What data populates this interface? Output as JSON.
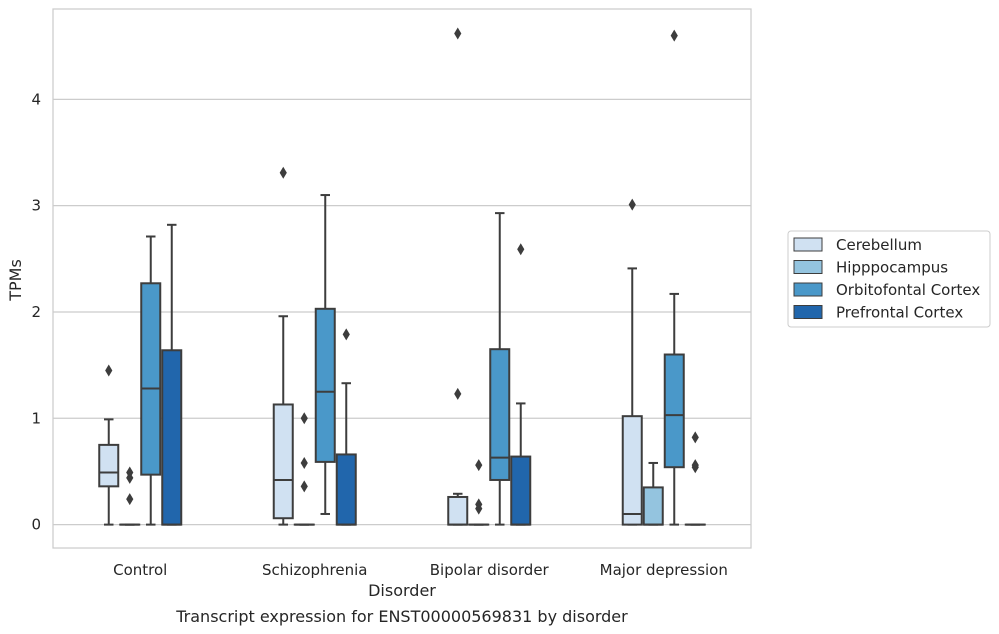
{
  "caption": "Transcript expression for ENST00000569831 by disorder",
  "chart_data": {
    "type": "box",
    "xlabel": "Disorder",
    "ylabel": "TPMs",
    "ylim": [
      -0.22,
      4.85
    ],
    "yticks": [
      0,
      1,
      2,
      3,
      4
    ],
    "grid": "horizontal",
    "legend_position": "right",
    "categories": [
      "Control",
      "Schizophrenia",
      "Bipolar disorder",
      "Major depression"
    ],
    "series": [
      {
        "name": "Cerebellum",
        "color": "#d0e1f2",
        "boxes": [
          {
            "whislo": 0,
            "q1": 0.36,
            "med": 0.49,
            "q3": 0.75,
            "whishi": 0.99,
            "fliers": [
              1.45
            ]
          },
          {
            "whislo": 0,
            "q1": 0.06,
            "med": 0.42,
            "q3": 1.13,
            "whishi": 1.96,
            "fliers": [
              3.31
            ]
          },
          {
            "whislo": 0,
            "q1": 0.0,
            "med": 0.0,
            "q3": 0.26,
            "whishi": 0.29,
            "fliers": [
              1.23,
              4.62
            ]
          },
          {
            "whislo": 0,
            "q1": 0.0,
            "med": 0.1,
            "q3": 1.02,
            "whishi": 2.41,
            "fliers": [
              3.01
            ]
          }
        ]
      },
      {
        "name": "Hipppocampus",
        "color": "#94c4df",
        "boxes": [
          {
            "whislo": 0,
            "q1": 0.0,
            "med": 0.0,
            "q3": 0.0,
            "whishi": 0.0,
            "fliers": [
              0.24,
              0.44,
              0.49
            ]
          },
          {
            "whislo": 0,
            "q1": 0.0,
            "med": 0.0,
            "q3": 0.0,
            "whishi": 0.0,
            "fliers": [
              0.36,
              0.58,
              1.0
            ]
          },
          {
            "whislo": 0,
            "q1": 0.0,
            "med": 0.0,
            "q3": 0.0,
            "whishi": 0.0,
            "fliers": [
              0.15,
              0.19,
              0.56
            ]
          },
          {
            "whislo": 0,
            "q1": 0.0,
            "med": 0.0,
            "q3": 0.35,
            "whishi": 0.58,
            "fliers": []
          }
        ]
      },
      {
        "name": "Orbitofontal Cortex",
        "color": "#4a98c9",
        "boxes": [
          {
            "whislo": 0,
            "q1": 0.47,
            "med": 1.28,
            "q3": 2.27,
            "whishi": 2.71,
            "fliers": []
          },
          {
            "whislo": 0.1,
            "q1": 0.59,
            "med": 1.25,
            "q3": 2.03,
            "whishi": 3.1,
            "fliers": []
          },
          {
            "whislo": 0,
            "q1": 0.42,
            "med": 0.63,
            "q3": 1.65,
            "whishi": 2.93,
            "fliers": []
          },
          {
            "whislo": 0,
            "q1": 0.54,
            "med": 1.03,
            "q3": 1.6,
            "whishi": 2.17,
            "fliers": [
              4.6
            ]
          }
        ]
      },
      {
        "name": "Prefrontal Cortex",
        "color": "#2166ac",
        "boxes": [
          {
            "whislo": 0,
            "q1": 0.0,
            "med": 0.0,
            "q3": 1.64,
            "whishi": 2.82,
            "fliers": []
          },
          {
            "whislo": 0,
            "q1": 0.0,
            "med": 0.0,
            "q3": 0.66,
            "whishi": 1.33,
            "fliers": [
              1.79
            ]
          },
          {
            "whislo": 0,
            "q1": 0.0,
            "med": 0.0,
            "q3": 0.64,
            "whishi": 1.14,
            "fliers": [
              2.59
            ]
          },
          {
            "whislo": 0,
            "q1": 0.0,
            "med": 0.0,
            "q3": 0.0,
            "whishi": 0.0,
            "fliers": [
              0.54,
              0.56,
              0.82
            ]
          }
        ]
      }
    ]
  }
}
